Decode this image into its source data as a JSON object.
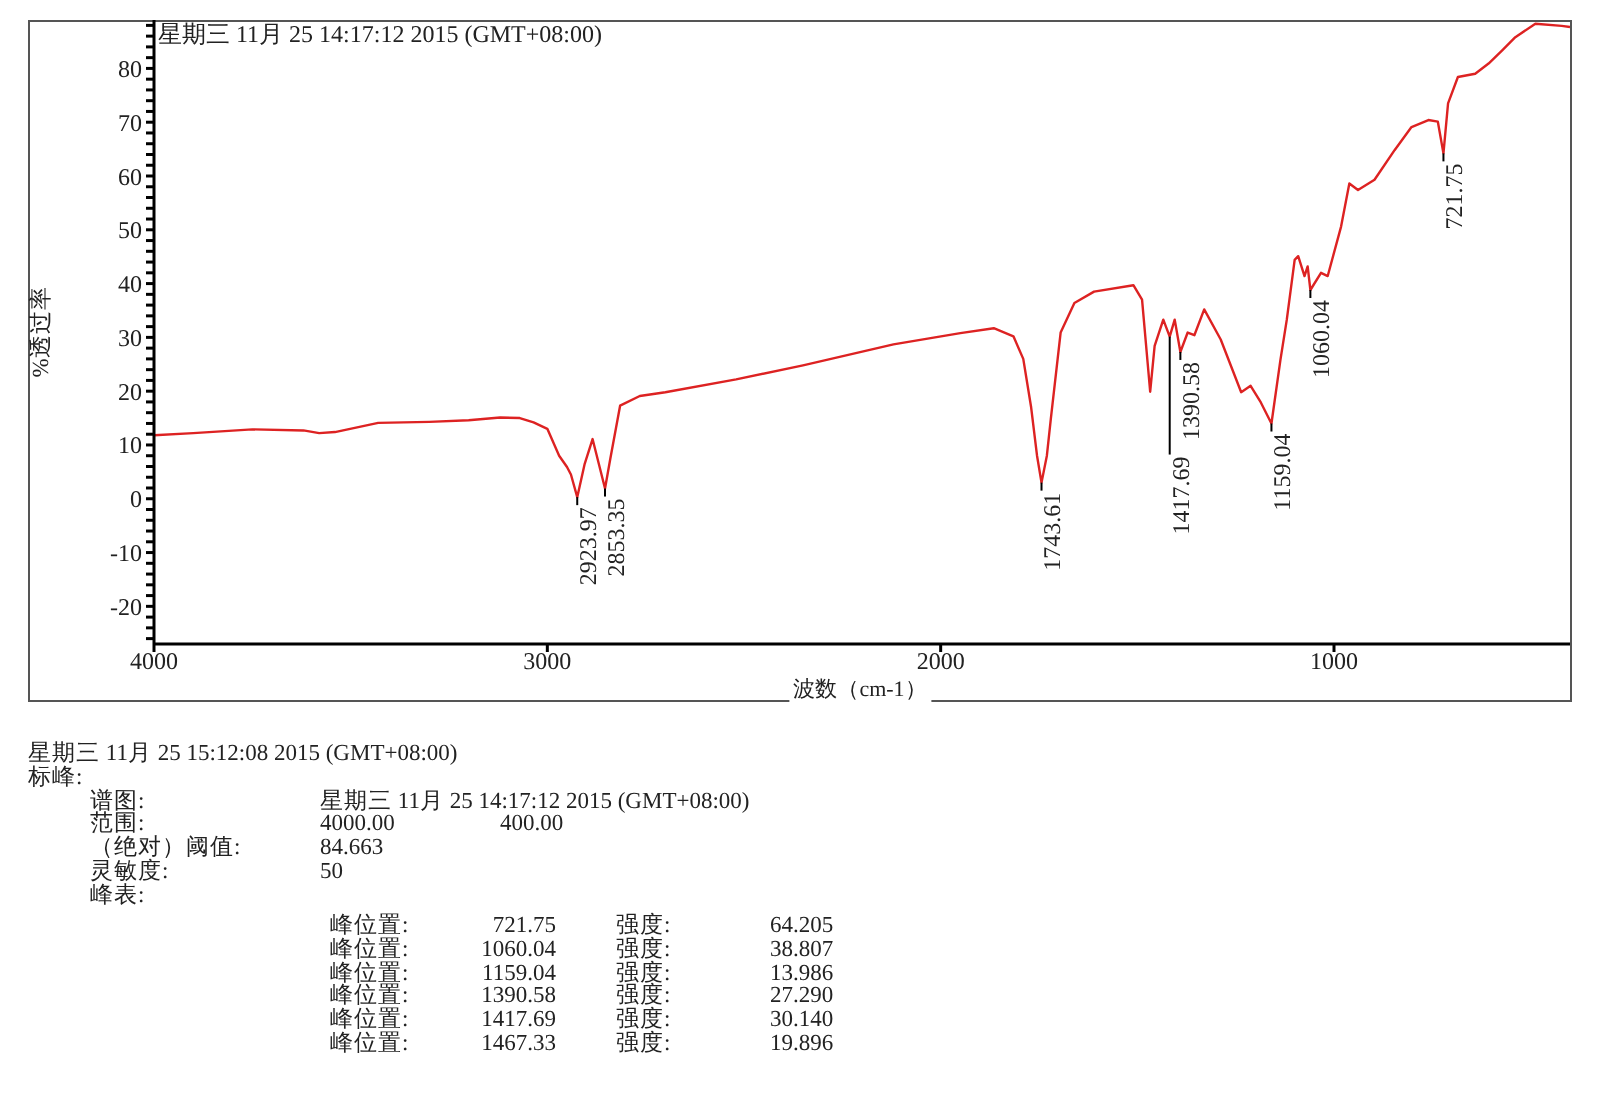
{
  "chart_data": {
    "type": "line",
    "title": "星期三 11月 25 14:17:12 2015 (GMT+08:00)",
    "xlabel": "波数（cm-1）",
    "ylabel": "%透过率",
    "x": [
      4000,
      3900,
      3750,
      3620,
      3580,
      3540,
      3430,
      3300,
      3200,
      3120,
      3070,
      3035,
      3000,
      2970,
      2950,
      2940,
      2923.97,
      2905,
      2885,
      2853.35,
      2840,
      2815,
      2765,
      2700,
      2520,
      2350,
      2120,
      1950,
      1865,
      1815,
      1790,
      1770,
      1755,
      1743.61,
      1730,
      1720,
      1695,
      1660,
      1610,
      1510,
      1488,
      1467.33,
      1456,
      1434,
      1417.69,
      1405,
      1390.58,
      1372,
      1355,
      1330,
      1288,
      1236,
      1212,
      1186,
      1159.04,
      1136,
      1120,
      1100,
      1091,
      1075,
      1067,
      1060.04,
      1033,
      1016,
      982,
      961,
      939,
      897,
      846,
      803,
      760,
      736,
      721.75,
      710,
      685,
      641,
      607,
      573,
      539,
      488,
      421,
      400
    ],
    "values": [
      11.8,
      12.2,
      12.9,
      12.7,
      12.2,
      12.4,
      14.1,
      14.3,
      14.6,
      15.1,
      15.0,
      14.2,
      13.0,
      8.0,
      5.9,
      4.5,
      0.3,
      6.5,
      11.1,
      1.9,
      7.4,
      17.3,
      19.1,
      19.8,
      22.2,
      24.8,
      28.7,
      30.8,
      31.7,
      30.2,
      26.0,
      17.0,
      8.0,
      3.0,
      8.0,
      14.8,
      30.9,
      36.4,
      38.5,
      39.7,
      37.0,
      19.896,
      28.4,
      33.3,
      30.14,
      33.3,
      27.29,
      30.9,
      30.4,
      35.2,
      29.6,
      19.8,
      21.0,
      17.9,
      13.986,
      25.9,
      33.3,
      44.4,
      45.1,
      41.4,
      43.2,
      38.807,
      42.0,
      41.4,
      50.6,
      58.6,
      57.4,
      59.3,
      64.8,
      69.1,
      70.4,
      70.1,
      64.205,
      73.5,
      78.4,
      79.0,
      80.9,
      83.3,
      85.8,
      88.3,
      87.9,
      87.7
    ],
    "color": "#dd2222",
    "marker": "none",
    "line_style": "solid",
    "xlim": [
      4000,
      400
    ],
    "xticks": [
      4000,
      3000,
      2000,
      1000
    ],
    "ylim": [
      -27,
      89
    ],
    "yticks": [
      {
        "value": -26,
        "label": null
      },
      {
        "value": -24,
        "label": null
      },
      {
        "value": -22,
        "label": null
      },
      -20,
      {
        "value": -18,
        "label": null
      },
      {
        "value": -16,
        "label": null
      },
      {
        "value": -14,
        "label": null
      },
      {
        "value": -12,
        "label": null
      },
      -10,
      {
        "value": -8,
        "label": null
      },
      {
        "value": -6,
        "label": null
      },
      {
        "value": -4,
        "label": null
      },
      {
        "value": -2,
        "label": null
      },
      0,
      {
        "value": 2,
        "label": null
      },
      {
        "value": 4,
        "label": null
      },
      {
        "value": 6,
        "label": null
      },
      {
        "value": 8,
        "label": null
      },
      10,
      {
        "value": 12,
        "label": null
      },
      {
        "value": 14,
        "label": null
      },
      {
        "value": 16,
        "label": null
      },
      {
        "value": 18,
        "label": null
      },
      20,
      {
        "value": 22,
        "label": null
      },
      {
        "value": 24,
        "label": null
      },
      {
        "value": 26,
        "label": null
      },
      {
        "value": 28,
        "label": null
      },
      30,
      {
        "value": 32,
        "label": null
      },
      {
        "value": 34,
        "label": null
      },
      {
        "value": 36,
        "label": null
      },
      {
        "value": 38,
        "label": null
      },
      40,
      {
        "value": 42,
        "label": null
      },
      {
        "value": 44,
        "label": null
      },
      {
        "value": 46,
        "label": null
      },
      {
        "value": 48,
        "label": null
      },
      50,
      {
        "value": 52,
        "label": null
      },
      {
        "value": 54,
        "label": null
      },
      {
        "value": 56,
        "label": null
      },
      {
        "value": 58,
        "label": null
      },
      60,
      {
        "value": 62,
        "label": null
      },
      {
        "value": 64,
        "label": null
      },
      {
        "value": 66,
        "label": null
      },
      {
        "value": 68,
        "label": null
      },
      70,
      {
        "value": 72,
        "label": null
      },
      {
        "value": 74,
        "label": null
      },
      {
        "value": 76,
        "label": null
      },
      {
        "value": 78,
        "label": null
      },
      80,
      {
        "value": 82,
        "label": null
      },
      {
        "value": 84,
        "label": null
      },
      {
        "value": 86,
        "label": null
      },
      {
        "value": 88,
        "label": null
      }
    ],
    "annotations": [
      {
        "text": "2923.97",
        "x": 2923.97,
        "y": 0.3
      },
      {
        "text": "2853.35",
        "x": 2853.35,
        "y": 1.9
      },
      {
        "text": "1743.61",
        "x": 1743.61,
        "y": 3.0
      },
      {
        "text": "1390.58",
        "x": 1390.58,
        "y": 27.29
      },
      {
        "text": "1417.69",
        "x": 1417.69,
        "y": 30.14
      },
      {
        "text": "1159.04",
        "x": 1159.04,
        "y": 13.986
      },
      {
        "text": "1060.04",
        "x": 1060.04,
        "y": 38.807
      },
      {
        "text": "721.75",
        "x": 721.75,
        "y": 64.205
      },
      "星期三 11月 25 15:12:08 2015 (GMT+08:00)",
      "标峰:",
      "谱图:\t星期三 11月 25 14:17:12 2015 (GMT+08:00)",
      "范围:\t4000.00\t400.00",
      "（绝对）阈值:\t84.663",
      "灵敏度:\t50",
      "峰表:",
      "峰位置:\t721.75\t强度:\t64.205",
      "峰位置:\t1060.04\t强度:\t38.807",
      "峰位置:\t1159.04\t强度:\t13.986",
      "峰位置:\t1390.58\t强度:\t27.290",
      "峰位置:\t1417.69\t强度:\t30.140",
      "峰位置:\t1467.33\t强度:\t19.896"
    ]
  }
}
